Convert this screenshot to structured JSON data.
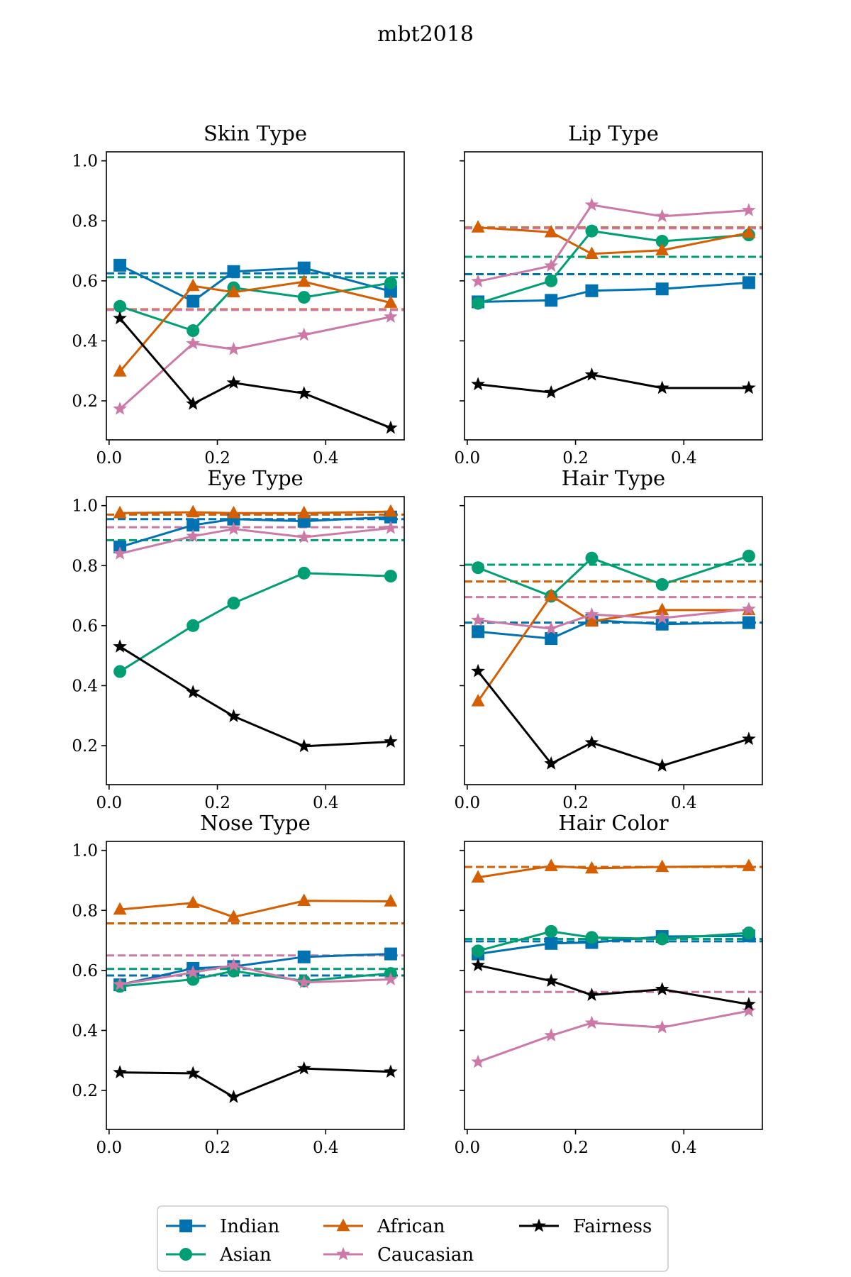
{
  "figure": {
    "title": "mbt2018"
  },
  "colors": {
    "Indian": "#0072b2",
    "Asian": "#009e73",
    "African": "#d55e00",
    "Caucasian": "#cc79a7",
    "Fairness": "#000000"
  },
  "markers": {
    "Indian": "square",
    "Asian": "circle",
    "African": "triangle",
    "Caucasian": "star",
    "Fairness": "star"
  },
  "legend": {
    "placement": "bottom-center",
    "entries": [
      "Indian",
      "Asian",
      "African",
      "Caucasian",
      "Fairness"
    ]
  },
  "chart_data": [
    {
      "type": "line",
      "title": "Skin Type",
      "x": [
        0.02,
        0.155,
        0.23,
        0.36,
        0.52
      ],
      "xlim": [
        -0.005,
        0.545
      ],
      "ylim": [
        0.07,
        1.03
      ],
      "xticks": [
        "0.0",
        "0.2",
        "0.4"
      ],
      "yticks": [
        "0.2",
        "0.4",
        "0.6",
        "0.8",
        "1.0"
      ],
      "series": [
        {
          "name": "Indian",
          "values": [
            0.652,
            0.532,
            0.631,
            0.643,
            0.565
          ]
        },
        {
          "name": "Asian",
          "values": [
            0.515,
            0.434,
            0.577,
            0.545,
            0.593
          ]
        },
        {
          "name": "African",
          "values": [
            0.298,
            0.583,
            0.562,
            0.597,
            0.527
          ]
        },
        {
          "name": "Caucasian",
          "values": [
            0.173,
            0.391,
            0.372,
            0.42,
            0.48
          ]
        },
        {
          "name": "Fairness",
          "values": [
            0.475,
            0.19,
            0.26,
            0.225,
            0.11
          ]
        }
      ],
      "baselines": [
        {
          "name": "Indian",
          "value": 0.625
        },
        {
          "name": "Asian",
          "value": 0.612
        },
        {
          "name": "African",
          "value": 0.505
        },
        {
          "name": "Caucasian",
          "value": 0.503
        }
      ]
    },
    {
      "type": "line",
      "title": "Lip Type",
      "x": [
        0.02,
        0.155,
        0.23,
        0.36,
        0.52
      ],
      "xlim": [
        -0.005,
        0.545
      ],
      "ylim": [
        0.07,
        1.03
      ],
      "xticks": [
        "0.0",
        "0.2",
        "0.4"
      ],
      "yticks": [],
      "series": [
        {
          "name": "Indian",
          "values": [
            0.53,
            0.535,
            0.567,
            0.573,
            0.594
          ]
        },
        {
          "name": "Asian",
          "values": [
            0.525,
            0.6,
            0.766,
            0.732,
            0.753
          ]
        },
        {
          "name": "African",
          "values": [
            0.778,
            0.762,
            0.69,
            0.702,
            0.76
          ]
        },
        {
          "name": "Caucasian",
          "values": [
            0.598,
            0.65,
            0.853,
            0.815,
            0.835
          ]
        },
        {
          "name": "Fairness",
          "values": [
            0.255,
            0.228,
            0.287,
            0.243,
            0.243
          ]
        }
      ],
      "baselines": [
        {
          "name": "Indian",
          "value": 0.622
        },
        {
          "name": "Asian",
          "value": 0.68
        },
        {
          "name": "African",
          "value": 0.778
        },
        {
          "name": "Caucasian",
          "value": 0.775
        }
      ]
    },
    {
      "type": "line",
      "title": "Eye Type",
      "x": [
        0.02,
        0.155,
        0.23,
        0.36,
        0.52
      ],
      "xlim": [
        -0.005,
        0.545
      ],
      "ylim": [
        0.07,
        1.03
      ],
      "xticks": [
        "0.0",
        "0.2",
        "0.4"
      ],
      "yticks": [
        "0.2",
        "0.4",
        "0.6",
        "0.8",
        "1.0"
      ],
      "series": [
        {
          "name": "Indian",
          "values": [
            0.862,
            0.935,
            0.955,
            0.948,
            0.962
          ]
        },
        {
          "name": "Asian",
          "values": [
            0.447,
            0.6,
            0.675,
            0.775,
            0.765
          ]
        },
        {
          "name": "African",
          "values": [
            0.975,
            0.978,
            0.975,
            0.975,
            0.98
          ]
        },
        {
          "name": "Caucasian",
          "values": [
            0.84,
            0.898,
            0.922,
            0.895,
            0.925
          ]
        },
        {
          "name": "Fairness",
          "values": [
            0.53,
            0.378,
            0.298,
            0.198,
            0.213
          ]
        }
      ],
      "baselines": [
        {
          "name": "Indian",
          "value": 0.955
        },
        {
          "name": "Asian",
          "value": 0.885
        },
        {
          "name": "African",
          "value": 0.97
        },
        {
          "name": "Caucasian",
          "value": 0.928
        }
      ]
    },
    {
      "type": "line",
      "title": "Hair Type",
      "x": [
        0.02,
        0.155,
        0.23,
        0.36,
        0.52
      ],
      "xlim": [
        -0.005,
        0.545
      ],
      "ylim": [
        0.07,
        1.03
      ],
      "xticks": [
        "0.0",
        "0.2",
        "0.4"
      ],
      "yticks": [],
      "series": [
        {
          "name": "Indian",
          "values": [
            0.58,
            0.557,
            0.618,
            0.605,
            0.61
          ]
        },
        {
          "name": "Asian",
          "values": [
            0.793,
            0.698,
            0.825,
            0.737,
            0.832
          ]
        },
        {
          "name": "African",
          "values": [
            0.348,
            0.7,
            0.614,
            0.652,
            0.652
          ]
        },
        {
          "name": "Caucasian",
          "values": [
            0.618,
            0.59,
            0.637,
            0.625,
            0.655
          ]
        },
        {
          "name": "Fairness",
          "values": [
            0.448,
            0.14,
            0.21,
            0.133,
            0.222
          ]
        }
      ],
      "baselines": [
        {
          "name": "Indian",
          "value": 0.61
        },
        {
          "name": "Asian",
          "value": 0.803
        },
        {
          "name": "African",
          "value": 0.747
        },
        {
          "name": "Caucasian",
          "value": 0.695
        }
      ]
    },
    {
      "type": "line",
      "title": "Nose Type",
      "x": [
        0.02,
        0.155,
        0.23,
        0.36,
        0.52
      ],
      "xlim": [
        -0.005,
        0.545
      ],
      "ylim": [
        0.07,
        1.03
      ],
      "xticks": [
        "0.0",
        "0.2",
        "0.4"
      ],
      "yticks": [
        "0.2",
        "0.4",
        "0.6",
        "0.8",
        "1.0"
      ],
      "series": [
        {
          "name": "Indian",
          "values": [
            0.552,
            0.607,
            0.613,
            0.645,
            0.655
          ]
        },
        {
          "name": "Asian",
          "values": [
            0.547,
            0.57,
            0.598,
            0.565,
            0.59
          ]
        },
        {
          "name": "African",
          "values": [
            0.803,
            0.825,
            0.778,
            0.832,
            0.83
          ]
        },
        {
          "name": "Caucasian",
          "values": [
            0.553,
            0.593,
            0.617,
            0.56,
            0.57
          ]
        },
        {
          "name": "Fairness",
          "values": [
            0.26,
            0.257,
            0.178,
            0.273,
            0.262
          ]
        }
      ],
      "baselines": [
        {
          "name": "Indian",
          "value": 0.583
        },
        {
          "name": "Asian",
          "value": 0.605
        },
        {
          "name": "African",
          "value": 0.757
        },
        {
          "name": "Caucasian",
          "value": 0.65
        }
      ]
    },
    {
      "type": "line",
      "title": "Hair Color",
      "x": [
        0.02,
        0.155,
        0.23,
        0.36,
        0.52
      ],
      "xlim": [
        -0.005,
        0.545
      ],
      "ylim": [
        0.07,
        1.03
      ],
      "xticks": [
        "0.0",
        "0.2",
        "0.4"
      ],
      "yticks": [],
      "series": [
        {
          "name": "Indian",
          "values": [
            0.655,
            0.69,
            0.693,
            0.713,
            0.715
          ]
        },
        {
          "name": "Asian",
          "values": [
            0.665,
            0.73,
            0.71,
            0.705,
            0.725
          ]
        },
        {
          "name": "African",
          "values": [
            0.91,
            0.948,
            0.94,
            0.945,
            0.948
          ]
        },
        {
          "name": "Caucasian",
          "values": [
            0.295,
            0.383,
            0.425,
            0.41,
            0.465
          ]
        },
        {
          "name": "Fairness",
          "values": [
            0.617,
            0.565,
            0.518,
            0.537,
            0.487
          ]
        }
      ],
      "baselines": [
        {
          "name": "Indian",
          "value": 0.697
        },
        {
          "name": "Asian",
          "value": 0.705
        },
        {
          "name": "African",
          "value": 0.945
        },
        {
          "name": "Caucasian",
          "value": 0.528
        }
      ]
    }
  ]
}
